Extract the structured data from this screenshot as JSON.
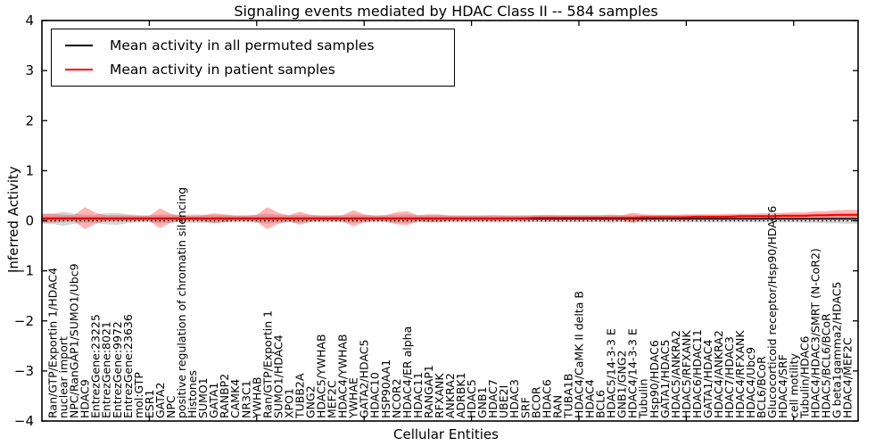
{
  "figure": {
    "title": "Signaling events mediated by HDAC Class II -- 584 samples",
    "xlabel": "Cellular Entities",
    "ylabel": "Inferred Activity"
  },
  "legend": {
    "items": [
      {
        "label": "Mean activity in all permuted samples",
        "color": "#000000"
      },
      {
        "label": "Mean activity in patient samples",
        "color": "#ff0000"
      }
    ]
  },
  "chart_data": {
    "type": "line",
    "title": "Signaling events mediated by HDAC Class II -- 584 samples",
    "xlabel": "Cellular Entities",
    "ylabel": "Inferred Activity",
    "ylim": [
      -4,
      4
    ],
    "yticks": [
      4,
      3,
      2,
      1,
      0,
      -1,
      -2,
      -3,
      -4
    ],
    "xlim": [
      0,
      76
    ],
    "xticks": [
      10,
      20,
      30,
      40,
      50,
      60,
      70
    ],
    "grid": false,
    "legend_position": "upper left",
    "zero_line": {
      "y": 0,
      "style": "dotted",
      "color": "#000000"
    },
    "categories": [
      "Ran/GTP/Exportin 1/HDAC4",
      "nuclear import",
      "NPC/RanGAP1/SUMO1/Ubc9",
      "HDAC9",
      "EntrezGene:23225",
      "EntrezGene:8021",
      "EntrezGene:9972",
      "EntrezGene:23636",
      "mol:GTP",
      "ESR1",
      "GATA2",
      "NPC",
      "positive regulation of chromatin silencing",
      "Histones",
      "SUMO1",
      "GATA1",
      "RANBP2",
      "CAMK4",
      "NR3C1",
      "YWHAB",
      "Ran/GTP/Exportin 1",
      "SUMO1/HDAC4",
      "XPO1",
      "TUBB2A",
      "GNG2",
      "HDAC5/YWHAB",
      "MEF2C",
      "HDAC4/YWHAB",
      "YWHAE",
      "GATA2/HDAC5",
      "HDAC10",
      "HSP90AA1",
      "NCOR2",
      "HDAC4/ER alpha",
      "HDAC11",
      "RANGAP1",
      "RFXANK",
      "ANKRA2",
      "ADRBK1",
      "HDAC5",
      "GNB1",
      "HDAC7",
      "UBE2I",
      "HDAC3",
      "SRF",
      "BCOR",
      "HDAC6",
      "RAN",
      "TUBA1B",
      "HDAC4/CaMK II delta B",
      "HDAC4",
      "BCL6",
      "HDAC5/14-3-3 E",
      "GNB1/GNG2",
      "HDAC4/14-3-3 E",
      "Tubulin",
      "Hsp90/HDAC6",
      "GATA1/HDAC5",
      "HDAC5/ANKRA2",
      "HDAC5/RFXANK",
      "HDAC6/HDAC11",
      "GATA1/HDAC4",
      "HDAC4/ANKRA2",
      "HDAC7/HDAC3",
      "HDAC4/RFXANK",
      "HDAC4/Ubc9",
      "BCL6/BCoR",
      "Glucocorticoid receptor/Hsp90/HDAC6",
      "HDAC4/SRF",
      "cell motility",
      "Tubulin/HDAC6",
      "HDAC4/HDAC3/SMRT (N-CoR2)",
      "HDAC5/BCL6/BCoR",
      "G beta1gamma2/HDAC5",
      "HDAC4/MEF2C"
    ],
    "series": [
      {
        "name": "Mean activity in all permuted samples",
        "type": "line",
        "color": "#000000",
        "values": [
          0.04,
          0.04,
          0.04,
          0.04,
          0.04,
          0.04,
          0.04,
          0.04,
          0.04,
          0.04,
          0.04,
          0.04,
          0.04,
          0.04,
          0.04,
          0.04,
          0.04,
          0.04,
          0.04,
          0.04,
          0.04,
          0.04,
          0.04,
          0.04,
          0.04,
          0.04,
          0.04,
          0.04,
          0.04,
          0.04,
          0.04,
          0.04,
          0.04,
          0.04,
          0.04,
          0.04,
          0.04,
          0.04,
          0.04,
          0.04,
          0.04,
          0.04,
          0.04,
          0.04,
          0.04,
          0.04,
          0.04,
          0.04,
          0.04,
          0.04,
          0.04,
          0.04,
          0.04,
          0.04,
          0.04,
          0.04,
          0.04,
          0.04,
          0.04,
          0.04,
          0.04,
          0.04,
          0.04,
          0.04,
          0.04,
          0.04,
          0.04,
          0.04,
          0.04,
          0.04,
          0.04,
          0.04,
          0.04,
          0.04,
          0.04
        ]
      },
      {
        "name": "Mean activity in patient samples",
        "type": "line",
        "color": "#ff0000",
        "values": [
          0.05,
          0.05,
          0.05,
          0.05,
          0.05,
          0.05,
          0.05,
          0.05,
          0.05,
          0.05,
          0.05,
          0.05,
          0.05,
          0.05,
          0.05,
          0.05,
          0.05,
          0.05,
          0.05,
          0.05,
          0.05,
          0.05,
          0.05,
          0.05,
          0.05,
          0.05,
          0.05,
          0.05,
          0.05,
          0.05,
          0.05,
          0.05,
          0.05,
          0.05,
          0.05,
          0.05,
          0.05,
          0.05,
          0.05,
          0.05,
          0.05,
          0.05,
          0.05,
          0.05,
          0.05,
          0.06,
          0.06,
          0.06,
          0.06,
          0.06,
          0.06,
          0.06,
          0.06,
          0.06,
          0.06,
          0.07,
          0.07,
          0.07,
          0.07,
          0.07,
          0.08,
          0.08,
          0.08,
          0.08,
          0.09,
          0.09,
          0.09,
          0.09,
          0.1,
          0.1,
          0.1,
          0.11,
          0.11,
          0.12,
          0.12
        ]
      },
      {
        "name": "Permuted samples spread (band half-width)",
        "type": "band",
        "center": "Mean activity in all permuted samples",
        "color": "rgba(150,150,150,0.40)",
        "values": [
          0.1,
          0.14,
          0.1,
          0.08,
          0.08,
          0.11,
          0.12,
          0.09,
          0.07,
          0.07,
          0.09,
          0.08,
          0.07,
          0.09,
          0.08,
          0.08,
          0.07,
          0.07,
          0.07,
          0.08,
          0.1,
          0.08,
          0.07,
          0.08,
          0.07,
          0.07,
          0.07,
          0.07,
          0.09,
          0.07,
          0.07,
          0.07,
          0.08,
          0.09,
          0.07,
          0.07,
          0.07,
          0.07,
          0.07,
          0.07,
          0.07,
          0.07,
          0.07,
          0.07,
          0.07,
          0.07,
          0.07,
          0.07,
          0.07,
          0.07,
          0.07,
          0.07,
          0.08,
          0.07,
          0.08,
          0.07,
          0.07,
          0.07,
          0.07,
          0.07,
          0.07,
          0.07,
          0.07,
          0.07,
          0.07,
          0.07,
          0.07,
          0.07,
          0.07,
          0.07,
          0.08,
          0.08,
          0.09,
          0.09,
          0.1
        ]
      },
      {
        "name": "Patient samples spread (band half-width)",
        "type": "band",
        "center": "Mean activity in patient samples",
        "color": "rgba(255,55,55,0.38)",
        "values": [
          0.09,
          0.07,
          0.06,
          0.22,
          0.11,
          0.06,
          0.06,
          0.06,
          0.05,
          0.05,
          0.2,
          0.09,
          0.05,
          0.05,
          0.06,
          0.1,
          0.08,
          0.05,
          0.05,
          0.07,
          0.22,
          0.11,
          0.06,
          0.13,
          0.07,
          0.05,
          0.05,
          0.06,
          0.16,
          0.08,
          0.05,
          0.06,
          0.12,
          0.14,
          0.06,
          0.08,
          0.08,
          0.05,
          0.05,
          0.05,
          0.05,
          0.06,
          0.05,
          0.05,
          0.05,
          0.05,
          0.06,
          0.05,
          0.05,
          0.05,
          0.05,
          0.05,
          0.06,
          0.05,
          0.1,
          0.06,
          0.05,
          0.05,
          0.05,
          0.06,
          0.05,
          0.05,
          0.05,
          0.06,
          0.05,
          0.05,
          0.06,
          0.06,
          0.06,
          0.07,
          0.07,
          0.08,
          0.08,
          0.09,
          0.1
        ]
      }
    ]
  }
}
